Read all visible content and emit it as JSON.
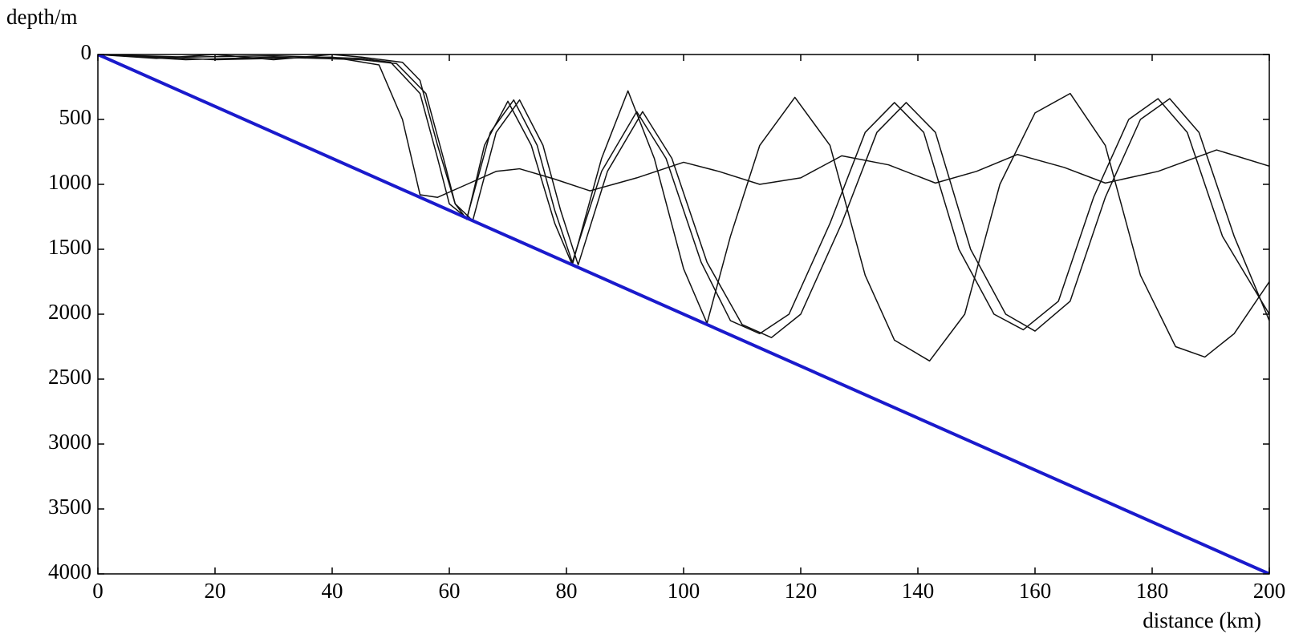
{
  "chart_data": {
    "type": "line",
    "y_label": "depth/m",
    "x_label": "distance (km)",
    "xlim": [
      0,
      200
    ],
    "xticks": [
      0,
      20,
      40,
      60,
      80,
      100,
      120,
      140,
      160,
      180,
      200
    ],
    "ylim": [
      0,
      4000
    ],
    "yticks": [
      0,
      500,
      1000,
      1500,
      2000,
      2500,
      3000,
      3500,
      4000
    ],
    "y_inverted": true,
    "series": [
      {
        "color": "#111111",
        "width": 1.5,
        "x": [
          0,
          10,
          20,
          30,
          40,
          45,
          52,
          55,
          58,
          61,
          63,
          66,
          70,
          74,
          78,
          81,
          86,
          90.5,
          95,
          100,
          104,
          108,
          113,
          119,
          125,
          131,
          136,
          142,
          148,
          154,
          160,
          166,
          172,
          178,
          184,
          189,
          194,
          200
        ],
        "values": [
          0,
          30,
          0,
          40,
          0,
          20,
          60,
          200,
          700,
          1150,
          1270,
          700,
          360,
          700,
          1300,
          1620,
          800,
          280,
          800,
          1650,
          2070,
          1400,
          700,
          330,
          700,
          1700,
          2200,
          2360,
          2000,
          1000,
          450,
          300,
          700,
          1700,
          2250,
          2330,
          2150,
          1750
        ]
      },
      {
        "color": "#111111",
        "width": 1.5,
        "x": [
          0,
          15,
          30,
          45,
          50,
          55,
          58,
          60,
          63,
          67,
          71,
          75,
          78,
          81,
          86,
          92,
          97,
          103,
          108,
          113,
          118,
          125,
          131,
          136,
          141,
          147,
          153,
          158,
          164,
          170,
          176,
          181,
          186,
          192,
          200
        ],
        "values": [
          0,
          20,
          10,
          30,
          60,
          300,
          800,
          1150,
          1260,
          600,
          350,
          700,
          1200,
          1600,
          900,
          440,
          800,
          1600,
          2050,
          2150,
          2000,
          1300,
          600,
          370,
          600,
          1500,
          2000,
          2120,
          1900,
          1100,
          500,
          340,
          600,
          1400,
          2000
        ]
      },
      {
        "color": "#111111",
        "width": 1.5,
        "x": [
          0,
          15,
          30,
          45,
          51,
          56,
          59,
          61,
          64,
          68,
          72,
          76,
          79,
          82,
          87,
          93,
          98,
          104,
          110,
          115,
          120,
          127,
          133,
          138,
          143,
          149,
          155,
          160,
          166,
          172,
          178,
          183,
          188,
          194,
          200
        ],
        "values": [
          0,
          40,
          20,
          40,
          70,
          300,
          800,
          1150,
          1280,
          600,
          350,
          700,
          1200,
          1620,
          900,
          440,
          800,
          1600,
          2080,
          2180,
          2000,
          1300,
          600,
          370,
          600,
          1500,
          2000,
          2130,
          1900,
          1100,
          500,
          340,
          600,
          1400,
          2050
        ]
      },
      {
        "color": "#111111",
        "width": 1.5,
        "x": [
          0,
          20,
          40,
          48,
          52,
          55,
          58,
          63,
          68,
          72,
          78,
          84,
          92,
          100,
          106,
          113,
          120,
          127,
          135,
          143,
          150,
          157,
          165,
          172,
          181,
          191,
          200
        ],
        "values": [
          0,
          40,
          20,
          80,
          500,
          1080,
          1100,
          1000,
          900,
          880,
          960,
          1050,
          950,
          830,
          900,
          1000,
          950,
          780,
          850,
          990,
          900,
          770,
          870,
          990,
          900,
          735,
          860
        ]
      },
      {
        "color": "#1a1acc",
        "width": 4,
        "x": [
          0,
          200
        ],
        "values": [
          0,
          4000
        ]
      }
    ]
  }
}
